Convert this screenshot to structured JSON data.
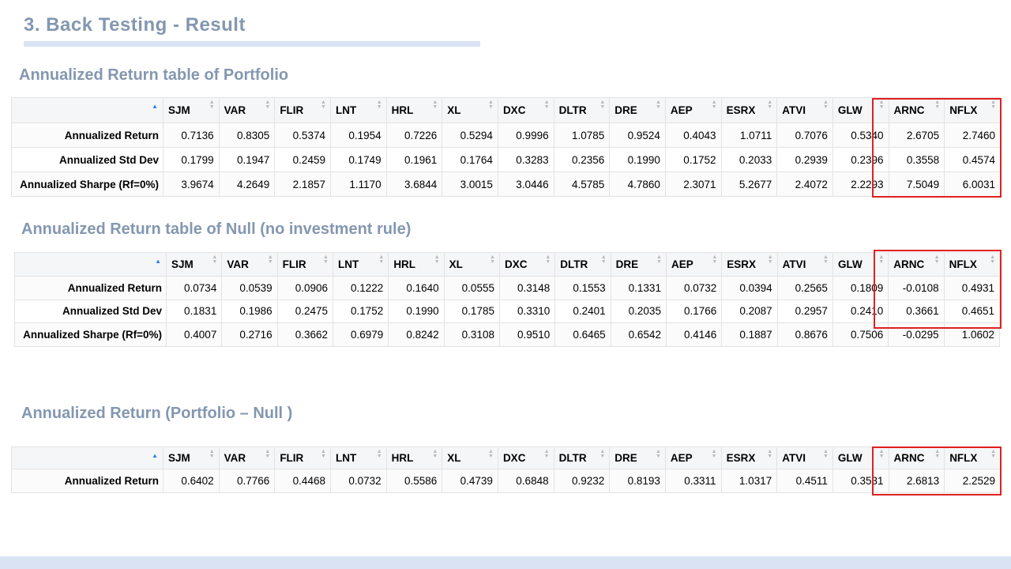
{
  "slide": {
    "title": "3. Back Testing - Result"
  },
  "tickers": [
    "SJM",
    "VAR",
    "FLIR",
    "LNT",
    "HRL",
    "XL",
    "DXC",
    "DLTR",
    "DRE",
    "AEP",
    "ESRX",
    "ATVI",
    "GLW",
    "ARNC",
    "NFLX"
  ],
  "portfolio": {
    "title": "Annualized Return table of Portfolio",
    "rows": [
      {
        "label": "Annualized Return",
        "values": [
          "0.7136",
          "0.8305",
          "0.5374",
          "0.1954",
          "0.7226",
          "0.5294",
          "0.9996",
          "1.0785",
          "0.9524",
          "0.4043",
          "1.0711",
          "0.7076",
          "0.5340",
          "2.6705",
          "2.7460"
        ]
      },
      {
        "label": "Annualized Std Dev",
        "values": [
          "0.1799",
          "0.1947",
          "0.2459",
          "0.1749",
          "0.1961",
          "0.1764",
          "0.3283",
          "0.2356",
          "0.1990",
          "0.1752",
          "0.2033",
          "0.2939",
          "0.2396",
          "0.3558",
          "0.4574"
        ]
      },
      {
        "label": "Annualized Sharpe (Rf=0%)",
        "values": [
          "3.9674",
          "4.2649",
          "2.1857",
          "1.1170",
          "3.6844",
          "3.0015",
          "3.0446",
          "4.5785",
          "4.7860",
          "2.3071",
          "5.2677",
          "2.4072",
          "2.2293",
          "7.5049",
          "6.0031"
        ]
      }
    ]
  },
  "null_table": {
    "title": "Annualized Return table of Null (no investment rule)",
    "rows": [
      {
        "label": "Annualized Return",
        "values": [
          "0.0734",
          "0.0539",
          "0.0906",
          "0.1222",
          "0.1640",
          "0.0555",
          "0.3148",
          "0.1553",
          "0.1331",
          "0.0732",
          "0.0394",
          "0.2565",
          "0.1809",
          "-0.0108",
          "0.4931"
        ]
      },
      {
        "label": "Annualized Std Dev",
        "values": [
          "0.1831",
          "0.1986",
          "0.2475",
          "0.1752",
          "0.1990",
          "0.1785",
          "0.3310",
          "0.2401",
          "0.2035",
          "0.1766",
          "0.2087",
          "0.2957",
          "0.2410",
          "0.3661",
          "0.4651"
        ]
      },
      {
        "label": "Annualized Sharpe (Rf=0%)",
        "values": [
          "0.4007",
          "0.2716",
          "0.3662",
          "0.6979",
          "0.8242",
          "0.3108",
          "0.9510",
          "0.6465",
          "0.6542",
          "0.4146",
          "0.1887",
          "0.8676",
          "0.7506",
          "-0.0295",
          "1.0602"
        ]
      }
    ]
  },
  "diff": {
    "title": "Annualized Return (Portfolio – Null )",
    "rows": [
      {
        "label": "Annualized Return",
        "values": [
          "0.6402",
          "0.7766",
          "0.4468",
          "0.0732",
          "0.5586",
          "0.4739",
          "0.6848",
          "0.9232",
          "0.8193",
          "0.3311",
          "1.0317",
          "0.4511",
          "0.3531",
          "2.6813",
          "2.2529"
        ]
      }
    ]
  },
  "colors": {
    "title": "#8497b0",
    "accent_band": "#dae3f3",
    "highlight": "#e02020",
    "sort_active": "#2e7ef0"
  }
}
